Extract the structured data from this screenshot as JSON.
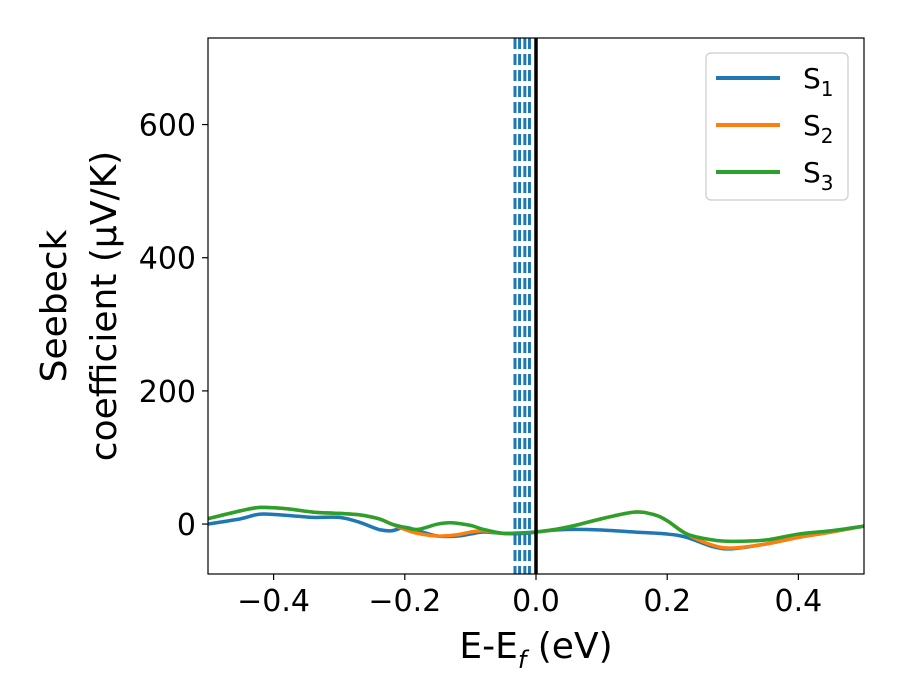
{
  "chart_data": {
    "type": "line",
    "xlabel": "E-E",
    "xlabel_sub": "f",
    "xlabel_unit": " (eV)",
    "ylabel_line1": "Seebeck",
    "ylabel_line2": "coefficient  (μV/K)",
    "xlim": [
      -0.5,
      0.5
    ],
    "ylim": [
      -75,
      730
    ],
    "xticks": [
      -0.4,
      -0.2,
      0.0,
      0.2,
      0.4
    ],
    "xtick_labels": [
      "−0.4",
      "−0.2",
      "0.0",
      "0.2",
      "0.4"
    ],
    "yticks": [
      0,
      200,
      400,
      600
    ],
    "ytick_labels": [
      "0",
      "200",
      "400",
      "600"
    ],
    "legend_position": "upper-right",
    "grid": false,
    "series": [
      {
        "name": "S",
        "sub": "1",
        "color": "#1f77b4",
        "x": [
          -0.5,
          -0.45,
          -0.42,
          -0.38,
          -0.34,
          -0.3,
          -0.27,
          -0.24,
          -0.22,
          -0.2,
          -0.18,
          -0.15,
          -0.12,
          -0.1,
          -0.08,
          -0.05,
          -0.02,
          0.0,
          0.03,
          0.06,
          0.1,
          0.15,
          0.2,
          0.23,
          0.27,
          0.3,
          0.35,
          0.4,
          0.45,
          0.5
        ],
        "y": [
          0,
          8,
          15,
          13,
          10,
          10,
          3,
          -8,
          -10,
          -5,
          -10,
          -18,
          -18,
          -15,
          -12,
          -14,
          -13,
          -12,
          -9,
          -8,
          -9,
          -12,
          -15,
          -20,
          -34,
          -37,
          -30,
          -20,
          -12,
          -3
        ]
      },
      {
        "name": "S",
        "sub": "2",
        "color": "#ff7f0e",
        "x": [
          -0.5,
          -0.45,
          -0.42,
          -0.38,
          -0.34,
          -0.3,
          -0.27,
          -0.24,
          -0.22,
          -0.2,
          -0.18,
          -0.15,
          -0.12,
          -0.1,
          -0.08,
          -0.05,
          -0.02,
          0.0,
          0.03,
          0.06,
          0.1,
          0.15,
          0.18,
          0.2,
          0.23,
          0.27,
          0.3,
          0.35,
          0.4,
          0.45,
          0.5
        ],
        "y": [
          8,
          20,
          25,
          23,
          18,
          16,
          14,
          8,
          0,
          -8,
          -14,
          -18,
          -16,
          -12,
          -10,
          -14,
          -14,
          -12,
          -8,
          -2,
          8,
          18,
          14,
          5,
          -15,
          -32,
          -36,
          -30,
          -20,
          -12,
          -3
        ]
      },
      {
        "name": "S",
        "sub": "3",
        "color": "#2ca02c",
        "x": [
          -0.5,
          -0.45,
          -0.42,
          -0.38,
          -0.34,
          -0.3,
          -0.27,
          -0.24,
          -0.22,
          -0.2,
          -0.18,
          -0.15,
          -0.13,
          -0.1,
          -0.08,
          -0.05,
          -0.02,
          0.0,
          0.03,
          0.06,
          0.1,
          0.15,
          0.18,
          0.2,
          0.23,
          0.27,
          0.3,
          0.35,
          0.4,
          0.45,
          0.5
        ],
        "y": [
          8,
          20,
          25,
          23,
          18,
          16,
          14,
          8,
          0,
          -5,
          -8,
          0,
          2,
          -2,
          -8,
          -14,
          -14,
          -12,
          -8,
          -2,
          8,
          18,
          14,
          5,
          -15,
          -24,
          -26,
          -24,
          -15,
          -10,
          -3
        ]
      }
    ],
    "vlines": [
      {
        "x": 0.0,
        "color": "#000000",
        "style": "solid"
      },
      {
        "x": -0.032,
        "color": "#1f77b4",
        "style": "dashed"
      },
      {
        "x": -0.025,
        "color": "#1f77b4",
        "style": "dashed"
      },
      {
        "x": -0.017,
        "color": "#1f77b4",
        "style": "dashed"
      },
      {
        "x": -0.01,
        "color": "#1f77b4",
        "style": "dashed"
      }
    ]
  }
}
